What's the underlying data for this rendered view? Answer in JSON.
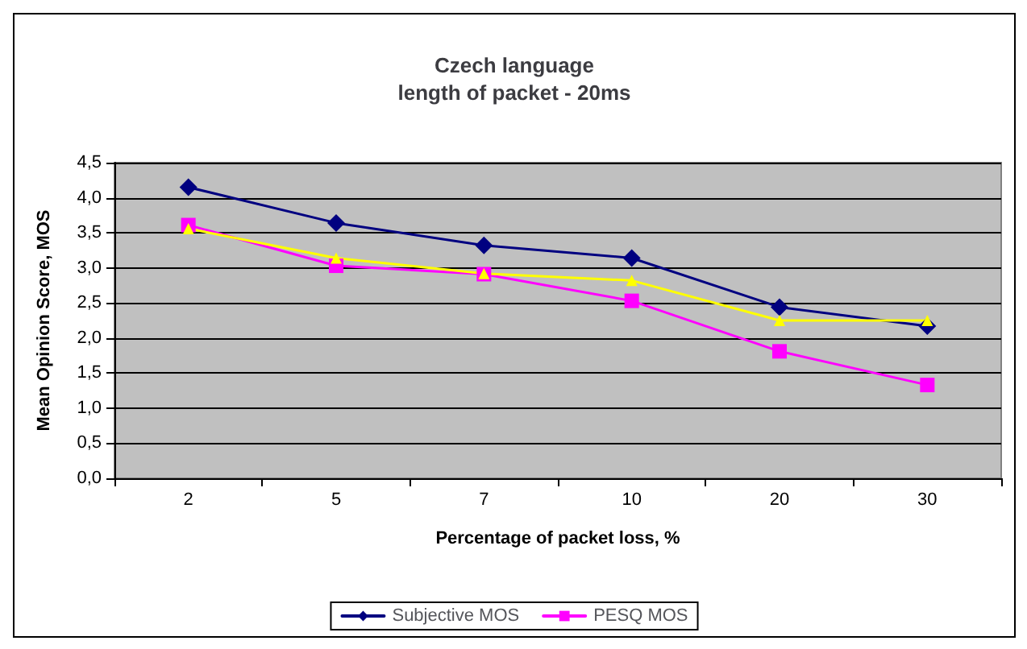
{
  "chart_data": {
    "type": "line",
    "title": "Czech language\nlength of packet - 20ms",
    "xlabel": "Percentage of packet loss, %",
    "ylabel": "Mean Opinion Score, MOS",
    "categories": [
      "2",
      "5",
      "7",
      "10",
      "20",
      "30"
    ],
    "series": [
      {
        "name": "Subjective MOS",
        "color": "#000080",
        "marker": "diamond",
        "values": [
          4.15,
          3.64,
          3.32,
          3.14,
          2.44,
          2.17
        ]
      },
      {
        "name": "PESQ MOS",
        "color": "#ff00ff",
        "marker": "square",
        "values": [
          3.61,
          3.03,
          2.91,
          2.53,
          1.81,
          1.33
        ]
      },
      {
        "color": "#ffff00",
        "marker": "triangle",
        "values": [
          3.56,
          3.14,
          2.92,
          2.82,
          2.25,
          2.25
        ]
      }
    ],
    "ylim": [
      0,
      4.5
    ],
    "yticks": [
      {
        "value": 0,
        "label": "0,0"
      },
      {
        "value": 0.5,
        "label": "0,5"
      },
      {
        "value": 1,
        "label": "1,0"
      },
      {
        "value": 1.5,
        "label": "1,5"
      },
      {
        "value": 2,
        "label": "2,0"
      },
      {
        "value": 2.5,
        "label": "2,5"
      },
      {
        "value": 3,
        "label": "3,0"
      },
      {
        "value": 3.5,
        "label": "3,5"
      },
      {
        "value": 4,
        "label": "4,0"
      },
      {
        "value": 4.5,
        "label": "4,5"
      }
    ],
    "grid": "y",
    "legend": "bottom",
    "line_style": "solid"
  }
}
